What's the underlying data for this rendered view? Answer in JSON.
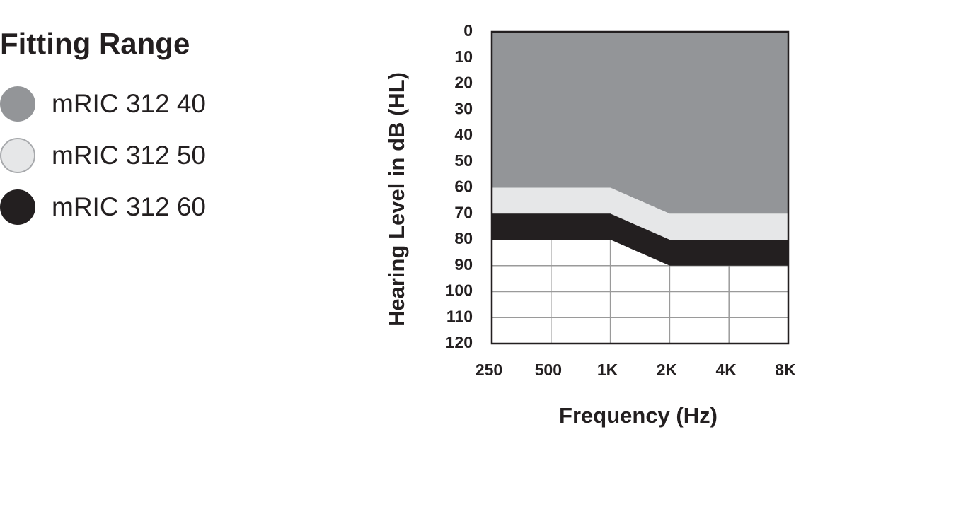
{
  "chart_data": {
    "type": "stacked-area",
    "title": "Fitting Range",
    "xlabel": "Frequency (Hz)",
    "ylabel": "Hearing Level in dB (HL)",
    "categories": [
      "250",
      "500",
      "1K",
      "2K",
      "4K",
      "8K"
    ],
    "series": [
      {
        "name": "mRIC 312 40",
        "color": "#939598",
        "values": [
          60,
          60,
          60,
          70,
          70,
          70
        ]
      },
      {
        "name": "mRIC 312 50",
        "color": "#e6e7e8",
        "values": [
          10,
          10,
          10,
          10,
          10,
          10
        ]
      },
      {
        "name": "mRIC 312 60",
        "color": "#231f20",
        "values": [
          10,
          10,
          10,
          10,
          10,
          10
        ]
      }
    ],
    "ylim": [
      0,
      120
    ],
    "yticks": [
      0,
      10,
      20,
      30,
      40,
      50,
      60,
      70,
      80,
      90,
      100,
      110,
      120
    ],
    "y_inverted": true,
    "grid": true
  }
}
